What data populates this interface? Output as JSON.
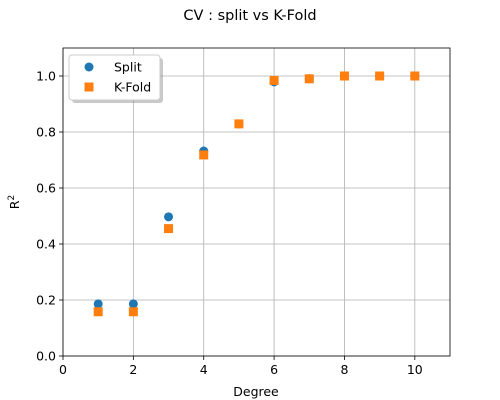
{
  "chart_data": {
    "type": "scatter",
    "title": "CV : split vs K-Fold",
    "xlabel": "Degree",
    "ylabel": "R",
    "ylabel_sup": "2",
    "xlim": [
      0,
      11
    ],
    "ylim": [
      0,
      1.1
    ],
    "xticks": [
      0,
      2,
      4,
      6,
      8,
      10
    ],
    "yticks": [
      0.0,
      0.2,
      0.4,
      0.6,
      0.8,
      1.0
    ],
    "xtick_labels": [
      "0",
      "2",
      "4",
      "6",
      "8",
      "10"
    ],
    "ytick_labels": [
      "0.0",
      "0.2",
      "0.4",
      "0.6",
      "0.8",
      "1.0"
    ],
    "grid": true,
    "legend_position": "upper-left",
    "series": [
      {
        "name": "Split",
        "marker": "circle",
        "color": "#1f77b4",
        "x": [
          1,
          2,
          3,
          4,
          5,
          6,
          7,
          8,
          9,
          10
        ],
        "y": [
          0.186,
          0.186,
          0.497,
          0.732,
          0.829,
          0.979,
          0.99,
          1.0,
          1.0,
          1.0
        ]
      },
      {
        "name": "K-Fold",
        "marker": "square",
        "color": "#ff7f0e",
        "x": [
          1,
          2,
          3,
          4,
          5,
          6,
          7,
          8,
          9,
          10
        ],
        "y": [
          0.158,
          0.158,
          0.455,
          0.718,
          0.829,
          0.984,
          0.99,
          1.0,
          1.0,
          1.0
        ]
      }
    ]
  }
}
